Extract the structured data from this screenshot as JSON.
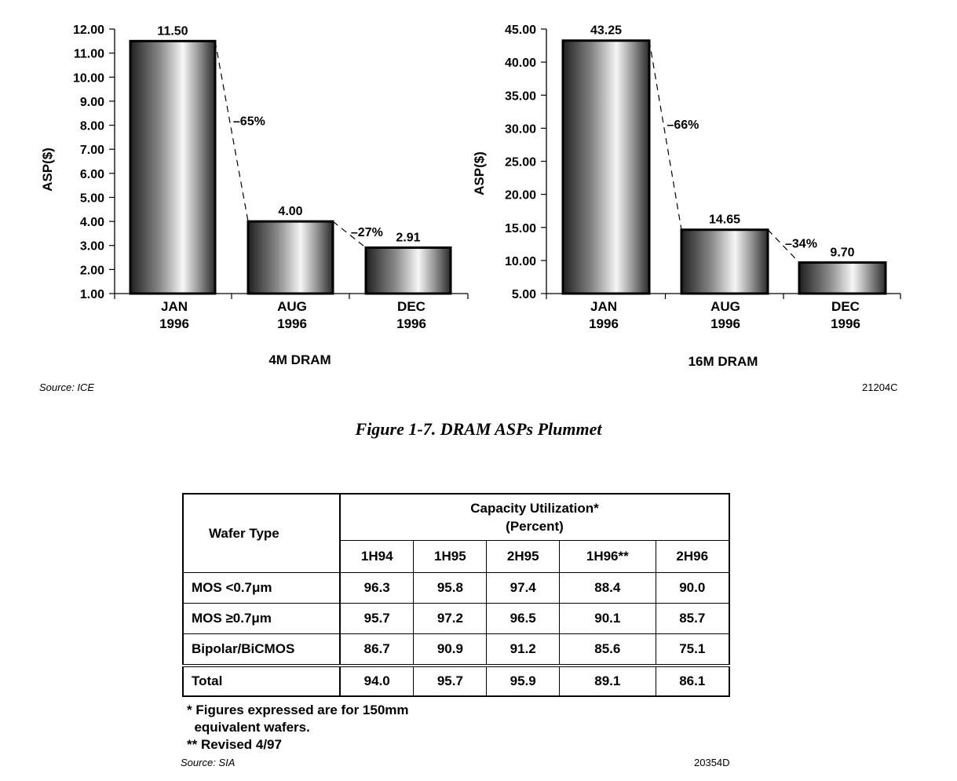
{
  "chart_data": [
    {
      "type": "bar",
      "title": "4M DRAM",
      "ylabel": "ASP($)",
      "categories": [
        [
          "JAN",
          "1996"
        ],
        [
          "AUG",
          "1996"
        ],
        [
          "DEC",
          "1996"
        ]
      ],
      "values": [
        11.5,
        4.0,
        2.91
      ],
      "value_labels": [
        "11.50",
        "4.00",
        "2.91"
      ],
      "ylim": [
        1.0,
        12.0
      ],
      "yticks": [
        "1.00",
        "2.00",
        "3.00",
        "4.00",
        "5.00",
        "6.00",
        "7.00",
        "8.00",
        "9.00",
        "10.00",
        "11.00",
        "12.00"
      ],
      "change_labels": [
        "–65%",
        "–27%"
      ]
    },
    {
      "type": "bar",
      "title": "16M DRAM",
      "ylabel": "ASP($)",
      "categories": [
        [
          "JAN",
          "1996"
        ],
        [
          "AUG",
          "1996"
        ],
        [
          "DEC",
          "1996"
        ]
      ],
      "values": [
        43.25,
        14.65,
        9.7
      ],
      "value_labels": [
        "43.25",
        "14.65",
        "9.70"
      ],
      "ylim": [
        5.0,
        45.0
      ],
      "yticks": [
        "5.00",
        "10.00",
        "15.00",
        "20.00",
        "25.00",
        "30.00",
        "35.00",
        "40.00",
        "45.00"
      ],
      "change_labels": [
        "–66%",
        "–34%"
      ]
    }
  ],
  "figure": {
    "source": "Source: ICE",
    "code": "21204C",
    "caption": "Figure 1-7.  DRAM ASPs Plummet"
  },
  "table": {
    "corner": "Wafer Type",
    "header_line1": "Capacity Utilization*",
    "header_line2": "(Percent)",
    "columns": [
      "1H94",
      "1H95",
      "2H95",
      "1H96**",
      "2H96"
    ],
    "rows": [
      {
        "label": "MOS <0.7μm",
        "values": [
          "96.3",
          "95.8",
          "97.4",
          "88.4",
          "90.0"
        ]
      },
      {
        "label": "MOS ≥0.7μm",
        "values": [
          "95.7",
          "97.2",
          "96.5",
          "90.1",
          "85.7"
        ]
      },
      {
        "label": "Bipolar/BiCMOS",
        "values": [
          "86.7",
          "90.9",
          "91.2",
          "85.6",
          "75.1"
        ]
      }
    ],
    "total": {
      "label": "Total",
      "values": [
        "94.0",
        "95.7",
        "95.9",
        "89.1",
        "86.1"
      ]
    },
    "note1": "* Figures expressed are for 150mm",
    "note1b": "  equivalent wafers.",
    "note2": "** Revised 4/97",
    "source": "Source:  SIA",
    "code": "20354D"
  }
}
